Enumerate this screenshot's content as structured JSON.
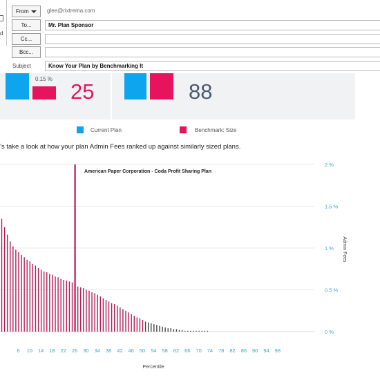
{
  "compose": {
    "send_label": "d",
    "from_label": "From",
    "from_email": "glee@rixtrema.com",
    "to_label": "To...",
    "to_value": "Mr. Plan Sponsor",
    "cc_label": "Cc...",
    "cc_value": "",
    "bcc_label": "Bcc...",
    "bcc_value": "",
    "subject_label": "Subject",
    "subject_value": "Know Your Plan by Benchmarking It"
  },
  "cards": {
    "left_small_value": "0.15 %",
    "left_big_number": "25",
    "right_big_number": "88"
  },
  "legend": {
    "current_plan": "Current Plan",
    "benchmark": "Benchmark: Size"
  },
  "intro_text": "’s take a look at how your plan Admin Fees ranked up against similarly sized plans.",
  "colors": {
    "blue": "#0ea4ee",
    "pink": "#e6145c",
    "bar_pink": "#b01c55",
    "bar_dark": "#444444",
    "axis_text": "#3aa5d6"
  },
  "chart_data": {
    "type": "bar",
    "annotation": "American Paper Corporation - Coda Profit Sharing Plan",
    "highlight_percentile": 26,
    "highlight_value": 2.0,
    "xlabel": "Percentile",
    "ylabel": "Admin Fees",
    "x_tick_labels": [
      "6",
      "10",
      "14",
      "18",
      "22",
      "26",
      "30",
      "34",
      "38",
      "42",
      "46",
      "50",
      "54",
      "58",
      "62",
      "66",
      "70",
      "74",
      "78",
      "82",
      "86",
      "90",
      "94",
      "98"
    ],
    "y_tick_labels": [
      "0 %",
      "0.5 %",
      "1 %",
      "1.5 %",
      "2 %"
    ],
    "ylim": [
      0,
      2
    ],
    "grid": true,
    "x_start": 0,
    "x_step": 1,
    "values": [
      1.35,
      1.25,
      1.16,
      1.08,
      1.02,
      0.98,
      0.95,
      0.92,
      0.89,
      0.86,
      0.84,
      0.81,
      0.79,
      0.76,
      0.74,
      0.72,
      0.71,
      0.69,
      0.68,
      0.66,
      0.65,
      0.63,
      0.62,
      0.61,
      0.6,
      0.59,
      0.55,
      0.54,
      0.53,
      0.52,
      0.5,
      0.49,
      0.47,
      0.46,
      0.44,
      0.42,
      0.4,
      0.38,
      0.36,
      0.34,
      0.33,
      0.31,
      0.29,
      0.27,
      0.25,
      0.23,
      0.21,
      0.19,
      0.17,
      0.16,
      0.14,
      0.12,
      0.11,
      0.1,
      0.09,
      0.08,
      0.07,
      0.06,
      0.05,
      0.04,
      0.04,
      0.03,
      0.03,
      0.02,
      0.02,
      0.01,
      0.01,
      0.01,
      0.01,
      0.01,
      0.01,
      0.01,
      0.01,
      0.01
    ]
  }
}
